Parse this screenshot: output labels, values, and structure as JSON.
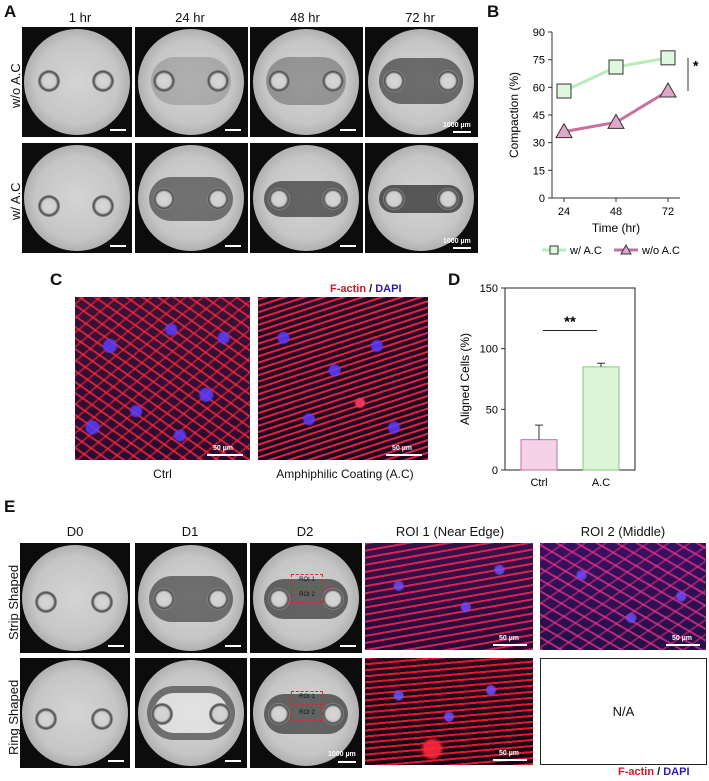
{
  "panels": {
    "a_label": "A",
    "b_label": "B",
    "c_label": "C",
    "d_label": "D",
    "e_label": "E"
  },
  "panel_a": {
    "columns": [
      "1 hr",
      "24 hr",
      "48 hr",
      "72 hr"
    ],
    "rows": [
      "w/o A.C",
      "w/ A.C"
    ],
    "scale_text": "1000 µm"
  },
  "panel_c": {
    "stain_red": "F-actin",
    "stain_sep": " / ",
    "stain_blue": "DAPI",
    "image_labels": [
      "Ctrl",
      "Amphiphilic Coating (A.C)"
    ],
    "scale_text": "50 µm"
  },
  "panel_e": {
    "columns": [
      "D0",
      "D1",
      "D2",
      "ROI 1 (Near Edge)",
      "ROI 2 (Middle)"
    ],
    "rows": [
      "Strip Shaped",
      "Ring Shaped"
    ],
    "roi1": "ROI 1",
    "roi2": "ROI 2",
    "na_text": "N/A",
    "scale_text_um": "50 µm",
    "scale_text_mm": "1000 µm",
    "stain_red": "F-actin",
    "stain_sep": " / ",
    "stain_blue": "DAPI"
  },
  "colors": {
    "red_stain": "#d6142a",
    "blue_stain": "#2a1ab8",
    "green_series": "#b8ecb8",
    "purple_series": "#c9709c"
  },
  "chart_data": [
    {
      "type": "line",
      "x": [
        24,
        48,
        72
      ],
      "xlabel": "Time (hr)",
      "ylabel": "Compaction (%)",
      "ylim": [
        0,
        90
      ],
      "yticks": [
        0,
        15,
        30,
        45,
        60,
        75,
        90
      ],
      "series": [
        {
          "name": "w/ A.C",
          "marker": "square",
          "values": [
            58,
            71,
            76
          ]
        },
        {
          "name": "w/o A.C",
          "marker": "triangle",
          "values": [
            36,
            41,
            58
          ]
        }
      ],
      "significance": "*",
      "legend": "bottom"
    },
    {
      "type": "bar",
      "categories": [
        "Ctrl",
        "A.C"
      ],
      "values": [
        25,
        85
      ],
      "errors": [
        12,
        3
      ],
      "ylabel": "Aligned Cells (%)",
      "ylim": [
        0,
        150
      ],
      "yticks": [
        0,
        50,
        100,
        150
      ],
      "significance": "**"
    }
  ]
}
